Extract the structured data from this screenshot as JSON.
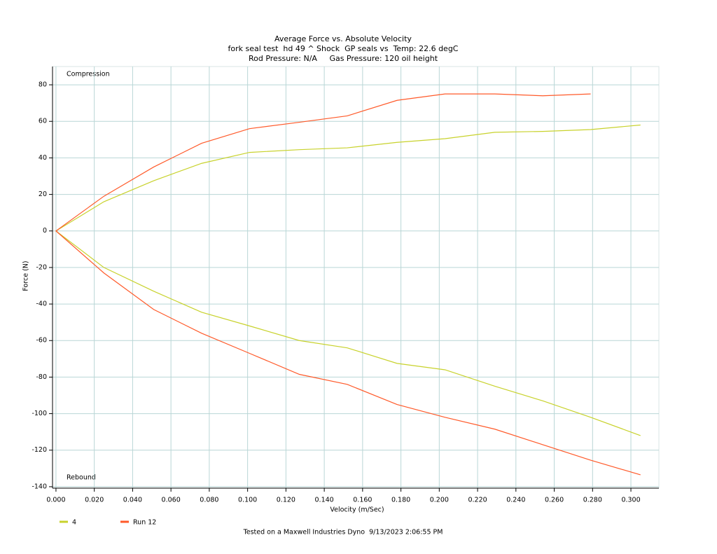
{
  "chart_data": {
    "type": "line",
    "title": "Average Force vs. Absolute Velocity",
    "subtitle": [
      "fork seal test  hd 49 ^ Shock  GP seals vs  Temp: 22.6 degC",
      "Rod Pressure: N/A     Gas Pressure: 120 oil height"
    ],
    "x_label": "Velocity (m/Sec)",
    "y_label": "Force (N)",
    "annotations": [
      "Compression",
      "Rebound"
    ],
    "footer": "Tested on a Maxwell Industries Dyno  9/13/2023 2:06:55 PM",
    "xlim": [
      -0.0018,
      0.3146
    ],
    "ylim": [
      -140.8,
      90
    ],
    "xticks": [
      {
        "value": 0,
        "label": "0.000"
      },
      {
        "value": 0.02,
        "label": "0.020"
      },
      {
        "value": 0.04,
        "label": "0.040"
      },
      {
        "value": 0.06,
        "label": "0.060"
      },
      {
        "value": 0.08,
        "label": "0.080"
      },
      {
        "value": 0.1,
        "label": "0.100"
      },
      {
        "value": 0.12,
        "label": "0.120"
      },
      {
        "value": 0.14,
        "label": "0.140"
      },
      {
        "value": 0.16,
        "label": "0.160"
      },
      {
        "value": 0.18,
        "label": "0.180"
      },
      {
        "value": 0.2,
        "label": "0.200"
      },
      {
        "value": 0.22,
        "label": "0.220"
      },
      {
        "value": 0.24,
        "label": "0.240"
      },
      {
        "value": 0.26,
        "label": "0.260"
      },
      {
        "value": 0.28,
        "label": "0.280"
      },
      {
        "value": 0.3,
        "label": "0.300"
      }
    ],
    "yticks": [
      80,
      60,
      40,
      20,
      0,
      -20,
      -40,
      -60,
      -80,
      -100,
      -120,
      -140
    ],
    "grid": true,
    "legend": "bottom-left",
    "series": [
      {
        "name": "4",
        "color": "#c8d22c",
        "x": [
          0.305,
          0.279,
          0.254,
          0.229,
          0.203,
          0.178,
          0.152,
          0.127,
          0.101,
          0.076,
          0.051,
          0.025,
          0,
          0.025,
          0.051,
          0.076,
          0.101,
          0.127,
          0.152,
          0.178,
          0.203,
          0.229,
          0.254,
          0.279,
          0.305
        ],
        "values": [
          -112,
          -102,
          -93,
          -85,
          -76,
          -72.5,
          -64,
          -60,
          -52,
          -44.5,
          -33,
          -20,
          0,
          16,
          27.5,
          37,
          43,
          44.5,
          45.5,
          48.5,
          50.5,
          54,
          54.5,
          55.5,
          58
        ]
      },
      {
        "name": "Run 12",
        "color": "#ff5a2a",
        "x": [
          0.305,
          0.279,
          0.254,
          0.229,
          0.203,
          0.178,
          0.152,
          0.127,
          0.101,
          0.076,
          0.051,
          0.025,
          0,
          0.025,
          0.051,
          0.076,
          0.101,
          0.127,
          0.152,
          0.178,
          0.203,
          0.229,
          0.254,
          0.279
        ],
        "values": [
          -133.5,
          -125.5,
          -117,
          -108.5,
          -102,
          -95,
          -84,
          -78.5,
          -67,
          -56,
          -43,
          -23,
          0,
          19,
          35,
          48,
          56,
          59.5,
          63,
          71.5,
          75,
          75,
          74,
          75
        ]
      }
    ]
  }
}
